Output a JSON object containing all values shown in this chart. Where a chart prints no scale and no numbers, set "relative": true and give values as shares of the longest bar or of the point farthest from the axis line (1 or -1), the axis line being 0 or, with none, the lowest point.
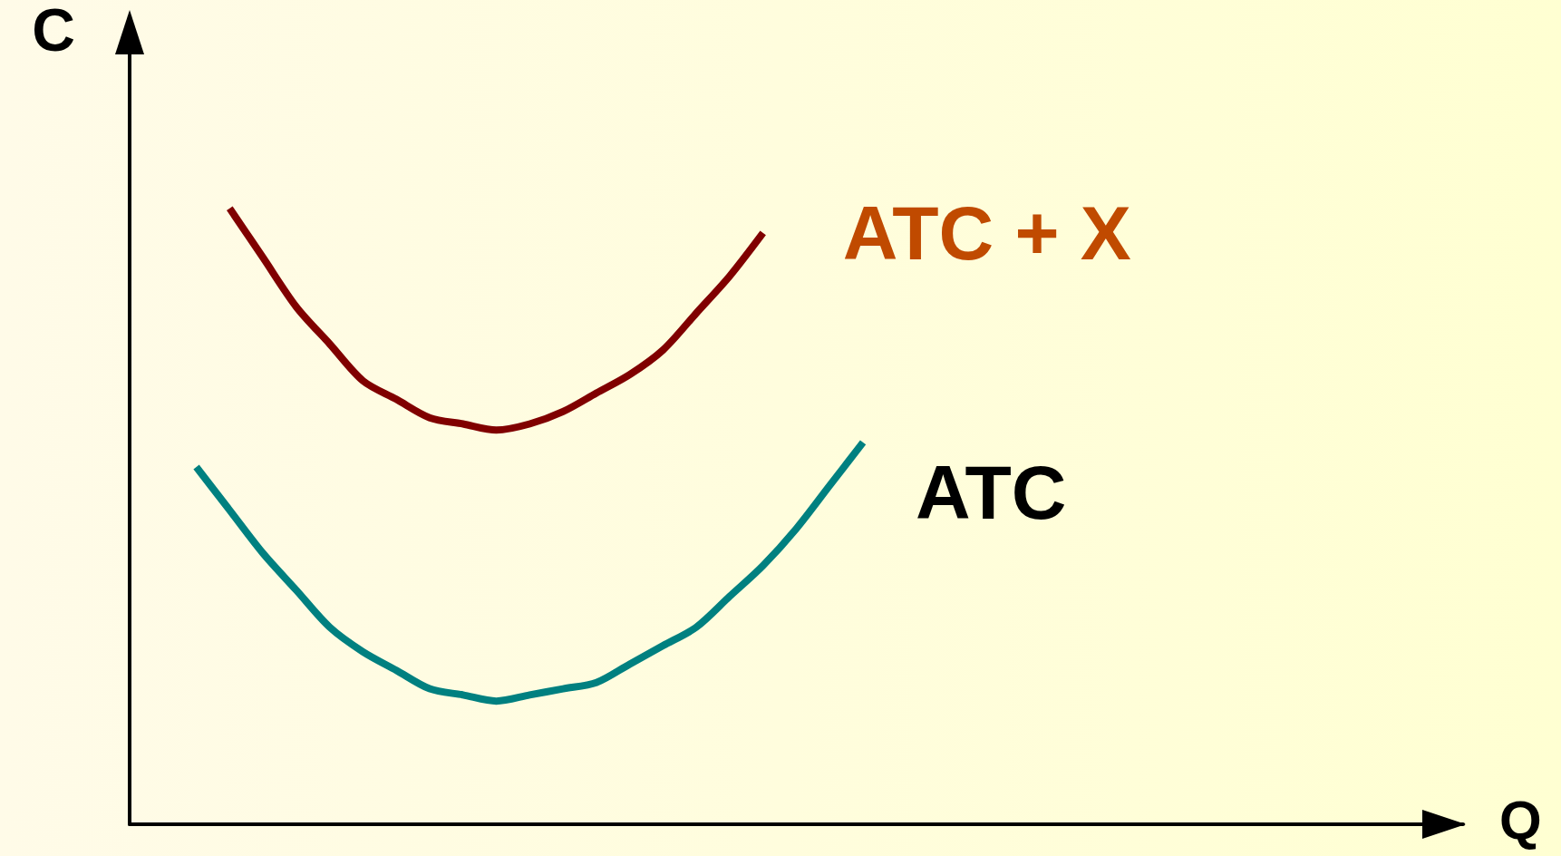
{
  "chart_data": {
    "type": "line",
    "relative": true,
    "xlabel": "Q",
    "ylabel": "C",
    "marker": "none",
    "line_style": "solid",
    "categories": [
      null,
      null,
      null,
      null,
      null,
      null,
      null,
      null,
      null,
      null,
      null,
      null,
      null,
      null,
      null,
      null,
      null,
      null,
      null,
      null,
      null,
      null,
      null,
      null,
      null,
      null,
      null,
      null,
      null,
      null,
      null,
      null,
      null,
      null,
      null,
      null,
      null,
      null,
      null,
      null,
      null
    ],
    "series": [
      {
        "name": "ATC + X",
        "color": "#800000",
        "values": [
          null,
          null,
          null,
          1,
          0.92,
          0.84,
          0.78,
          0.72,
          0.69,
          0.66,
          0.65,
          0.64,
          0.65,
          0.67,
          0.7,
          0.73,
          0.77,
          0.83,
          0.89,
          0.96,
          null,
          null,
          null,
          null,
          null,
          null,
          null,
          null,
          null,
          null,
          null,
          null,
          null,
          null,
          null,
          null,
          null,
          null,
          null,
          null,
          null
        ]
      },
      {
        "name": "ATC",
        "color": "#008080",
        "values": [
          null,
          null,
          0.58,
          0.51,
          0.44,
          0.38,
          0.32,
          0.28,
          0.25,
          0.22,
          0.21,
          0.2,
          0.21,
          0.22,
          0.23,
          0.26,
          0.29,
          0.32,
          0.37,
          0.42,
          0.48,
          0.55,
          0.62,
          null,
          null,
          null,
          null,
          null,
          null,
          null,
          null,
          null,
          null,
          null,
          null,
          null,
          null,
          null,
          null,
          null,
          null
        ]
      }
    ]
  }
}
